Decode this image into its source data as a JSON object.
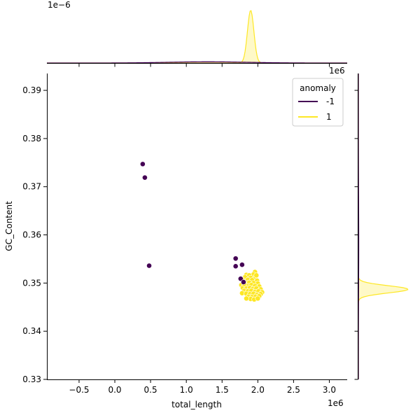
{
  "chart_data": {
    "type": "scatter",
    "kind": "jointplot",
    "xlabel": "total_length",
    "ylabel": "GC_Content",
    "x_multiplier_label": "1e6",
    "y_marginal_multiplier_label": "1e6",
    "x_marginal_multiplier_label": "1e−6",
    "xlim": [
      -0.95,
      3.25
    ],
    "ylim": [
      0.33,
      0.3935
    ],
    "x_ticks": [
      {
        "value": -0.5,
        "label": "−0.5"
      },
      {
        "value": 0.0,
        "label": "0.0"
      },
      {
        "value": 0.5,
        "label": "0.5"
      },
      {
        "value": 1.0,
        "label": "1.0"
      },
      {
        "value": 1.5,
        "label": "1.5"
      },
      {
        "value": 2.0,
        "label": "2.0"
      },
      {
        "value": 2.5,
        "label": "2.5"
      },
      {
        "value": 3.0,
        "label": "3.0"
      }
    ],
    "y_ticks": [
      {
        "value": 0.33,
        "label": "0.33"
      },
      {
        "value": 0.34,
        "label": "0.34"
      },
      {
        "value": 0.35,
        "label": "0.35"
      },
      {
        "value": 0.36,
        "label": "0.36"
      },
      {
        "value": 0.37,
        "label": "0.37"
      },
      {
        "value": 0.38,
        "label": "0.38"
      },
      {
        "value": 0.39,
        "label": "0.39"
      }
    ],
    "grid": false,
    "legend": {
      "title": "anomaly",
      "placement": "top-right",
      "entries": [
        {
          "label": "-1",
          "color": "#440154"
        },
        {
          "label": "1",
          "color": "#fde725"
        }
      ]
    },
    "series": [
      {
        "name": "-1",
        "color": "#440154",
        "points": [
          {
            "x": 0.39,
            "y": 0.3747
          },
          {
            "x": 0.42,
            "y": 0.3719
          },
          {
            "x": 0.48,
            "y": 0.3536
          },
          {
            "x": 1.69,
            "y": 0.3551
          },
          {
            "x": 1.69,
            "y": 0.3535
          },
          {
            "x": 1.78,
            "y": 0.3538
          },
          {
            "x": 1.76,
            "y": 0.3509
          },
          {
            "x": 1.8,
            "y": 0.3502
          }
        ]
      },
      {
        "name": "1",
        "color": "#fde725",
        "points": [
          {
            "x": 1.96,
            "y": 0.3523
          },
          {
            "x": 1.94,
            "y": 0.3518
          },
          {
            "x": 1.84,
            "y": 0.3517
          },
          {
            "x": 1.88,
            "y": 0.3516
          },
          {
            "x": 1.82,
            "y": 0.3512
          },
          {
            "x": 1.9,
            "y": 0.3511
          },
          {
            "x": 1.97,
            "y": 0.3512
          },
          {
            "x": 1.78,
            "y": 0.3508
          },
          {
            "x": 1.86,
            "y": 0.3507
          },
          {
            "x": 1.92,
            "y": 0.3506
          },
          {
            "x": 1.99,
            "y": 0.3505
          },
          {
            "x": 1.8,
            "y": 0.3502
          },
          {
            "x": 1.84,
            "y": 0.35
          },
          {
            "x": 1.88,
            "y": 0.3501
          },
          {
            "x": 1.94,
            "y": 0.35
          },
          {
            "x": 2.0,
            "y": 0.3499
          },
          {
            "x": 1.77,
            "y": 0.3496
          },
          {
            "x": 1.82,
            "y": 0.3495
          },
          {
            "x": 1.86,
            "y": 0.3494
          },
          {
            "x": 1.91,
            "y": 0.3496
          },
          {
            "x": 1.96,
            "y": 0.3494
          },
          {
            "x": 2.02,
            "y": 0.3493
          },
          {
            "x": 1.79,
            "y": 0.349
          },
          {
            "x": 1.84,
            "y": 0.3489
          },
          {
            "x": 1.89,
            "y": 0.349
          },
          {
            "x": 1.93,
            "y": 0.3488
          },
          {
            "x": 1.98,
            "y": 0.3489
          },
          {
            "x": 2.04,
            "y": 0.3487
          },
          {
            "x": 1.81,
            "y": 0.3484
          },
          {
            "x": 1.86,
            "y": 0.3483
          },
          {
            "x": 1.91,
            "y": 0.3484
          },
          {
            "x": 1.96,
            "y": 0.3482
          },
          {
            "x": 2.01,
            "y": 0.3483
          },
          {
            "x": 2.06,
            "y": 0.3481
          },
          {
            "x": 1.78,
            "y": 0.3479
          },
          {
            "x": 1.84,
            "y": 0.3478
          },
          {
            "x": 1.89,
            "y": 0.3477
          },
          {
            "x": 1.94,
            "y": 0.3478
          },
          {
            "x": 1.99,
            "y": 0.3476
          },
          {
            "x": 2.04,
            "y": 0.3477
          },
          {
            "x": 1.87,
            "y": 0.3472
          },
          {
            "x": 1.92,
            "y": 0.3471
          },
          {
            "x": 1.97,
            "y": 0.3472
          },
          {
            "x": 2.02,
            "y": 0.3473
          },
          {
            "x": 1.9,
            "y": 0.3467
          },
          {
            "x": 1.95,
            "y": 0.3466
          },
          {
            "x": 2.0,
            "y": 0.3468
          },
          {
            "x": 1.84,
            "y": 0.3468
          },
          {
            "x": 1.81,
            "y": 0.3498
          },
          {
            "x": 1.98,
            "y": 0.3516
          }
        ]
      }
    ],
    "marginal_x": {
      "series": [
        {
          "name": "-1",
          "color": "#440154",
          "peak_x": 1.3,
          "bandwidth": 0.55,
          "peak_density": 0.015
        },
        {
          "name": "1",
          "color": "#fde725",
          "peak_x": 1.9,
          "bandwidth": 0.045,
          "peak_density": 0.65
        }
      ],
      "ylim": [
        0,
        0.69
      ]
    },
    "marginal_y": {
      "series": [
        {
          "name": "-1",
          "color": "#440154",
          "peak_y": 0.358,
          "bandwidth": 0.009,
          "peak_density": 0.005
        },
        {
          "name": "1",
          "color": "#fde725",
          "peak_y": 0.3487,
          "bandwidth": 0.00075,
          "peak_density": 0.68
        }
      ],
      "xlim": [
        0,
        0.69
      ]
    }
  }
}
